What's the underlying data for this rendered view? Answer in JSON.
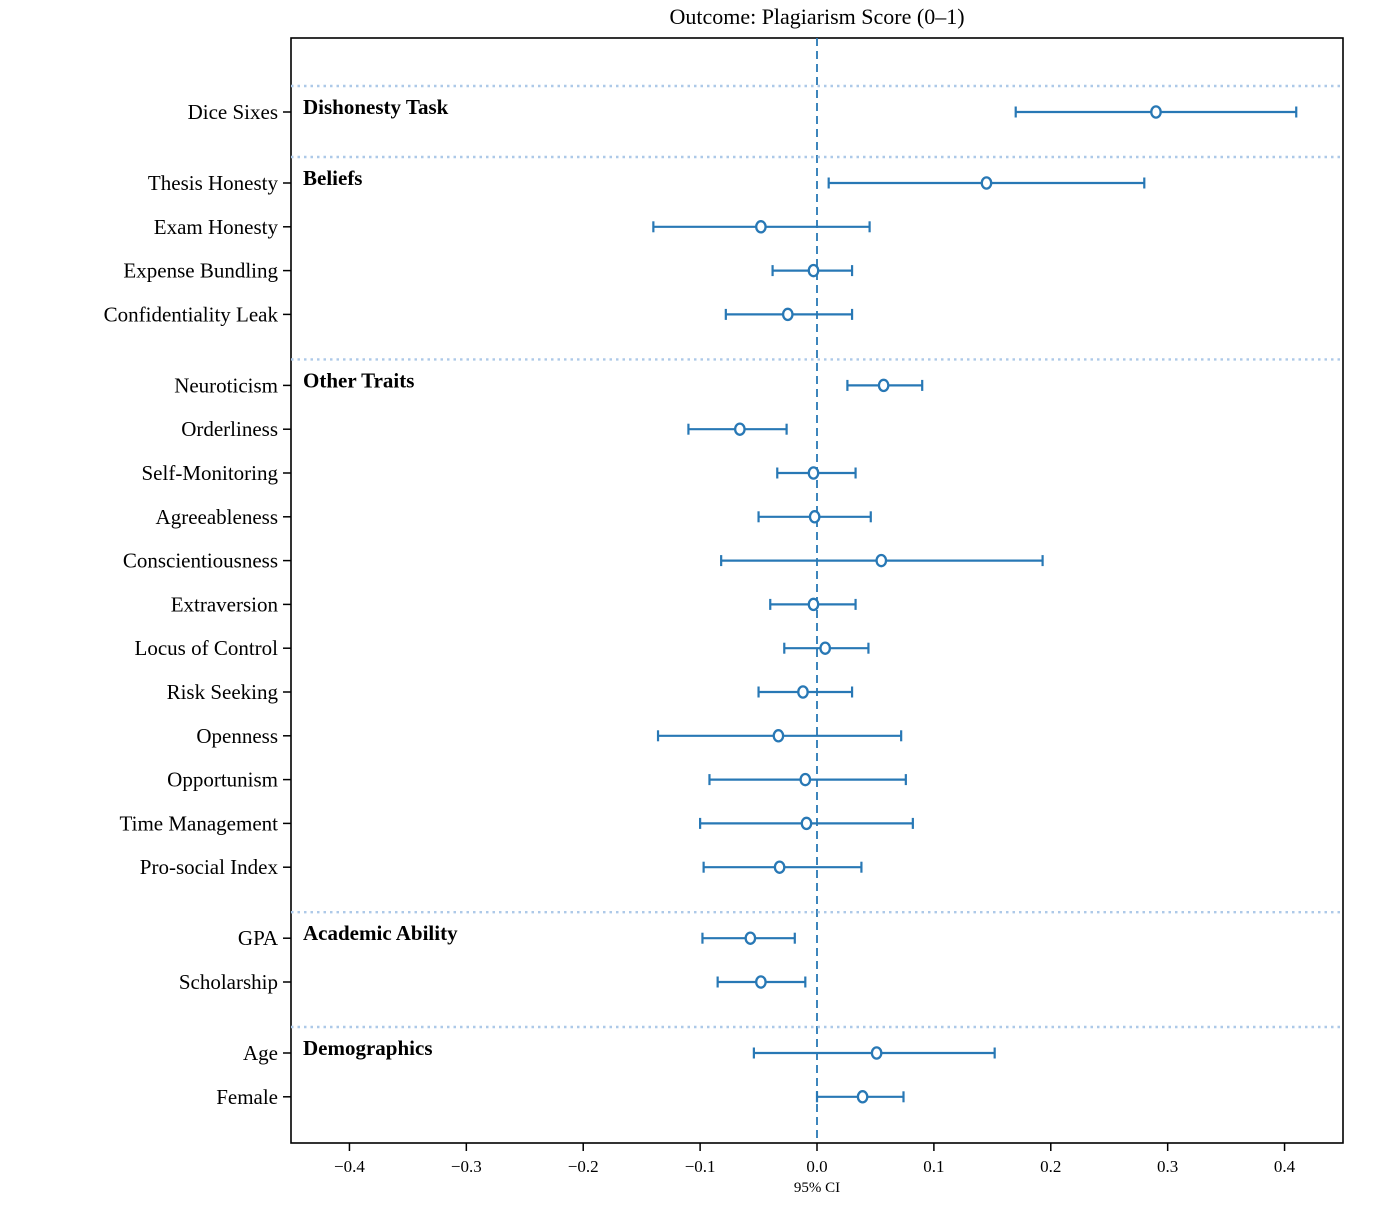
{
  "title": "Outcome: Plagiarism Score (0–1)",
  "xlabel": "95% CI",
  "colors": {
    "estimate_blue": "#2878b5",
    "zero_line_blue": "#2878b5",
    "separator_light_blue": "#adc9e8",
    "frame_black": "#000000",
    "background": "#ffffff"
  },
  "chart_data": {
    "type": "forest",
    "title": "Outcome: Plagiarism Score (0–1)",
    "xlabel": "95% CI",
    "xlim": [
      -0.45,
      0.45
    ],
    "zero_reference": 0.0,
    "x_ticks": [
      -0.4,
      -0.3,
      -0.2,
      -0.1,
      0.0,
      0.1,
      0.2,
      0.3,
      0.4
    ],
    "x_tick_labels": [
      "−0.4",
      "−0.3",
      "−0.2",
      "−0.1",
      "0.0",
      "0.1",
      "0.2",
      "0.3",
      "0.4"
    ],
    "grid": false,
    "marker_style": "open-circle",
    "groups": [
      {
        "label": "Dishonesty Task",
        "rows": [
          {
            "label": "Dice Sixes",
            "estimate": 0.29,
            "ci_low": 0.17,
            "ci_high": 0.41
          }
        ]
      },
      {
        "label": "Beliefs",
        "rows": [
          {
            "label": "Thesis Honesty",
            "estimate": 0.145,
            "ci_low": 0.01,
            "ci_high": 0.28
          },
          {
            "label": "Exam Honesty",
            "estimate": -0.048,
            "ci_low": -0.14,
            "ci_high": 0.045
          },
          {
            "label": "Expense Bundling",
            "estimate": -0.003,
            "ci_low": -0.038,
            "ci_high": 0.03
          },
          {
            "label": "Confidentiality Leak",
            "estimate": -0.025,
            "ci_low": -0.078,
            "ci_high": 0.03
          }
        ]
      },
      {
        "label": "Other Traits",
        "rows": [
          {
            "label": "Neuroticism",
            "estimate": 0.057,
            "ci_low": 0.026,
            "ci_high": 0.09
          },
          {
            "label": "Orderliness",
            "estimate": -0.066,
            "ci_low": -0.11,
            "ci_high": -0.026
          },
          {
            "label": "Self-Monitoring",
            "estimate": -0.003,
            "ci_low": -0.034,
            "ci_high": 0.033
          },
          {
            "label": "Agreeableness",
            "estimate": -0.002,
            "ci_low": -0.05,
            "ci_high": 0.046
          },
          {
            "label": "Conscientiousness",
            "estimate": 0.055,
            "ci_low": -0.082,
            "ci_high": 0.193
          },
          {
            "label": "Extraversion",
            "estimate": -0.003,
            "ci_low": -0.04,
            "ci_high": 0.033
          },
          {
            "label": "Locus of Control",
            "estimate": 0.007,
            "ci_low": -0.028,
            "ci_high": 0.044
          },
          {
            "label": "Risk Seeking",
            "estimate": -0.012,
            "ci_low": -0.05,
            "ci_high": 0.03
          },
          {
            "label": "Openness",
            "estimate": -0.033,
            "ci_low": -0.136,
            "ci_high": 0.072
          },
          {
            "label": "Opportunism",
            "estimate": -0.01,
            "ci_low": -0.092,
            "ci_high": 0.076
          },
          {
            "label": "Time Management",
            "estimate": -0.009,
            "ci_low": -0.1,
            "ci_high": 0.082
          },
          {
            "label": "Pro-social Index",
            "estimate": -0.032,
            "ci_low": -0.097,
            "ci_high": 0.038
          }
        ]
      },
      {
        "label": "Academic Ability",
        "rows": [
          {
            "label": "GPA",
            "estimate": -0.057,
            "ci_low": -0.098,
            "ci_high": -0.019
          },
          {
            "label": "Scholarship",
            "estimate": -0.048,
            "ci_low": -0.085,
            "ci_high": -0.01
          }
        ]
      },
      {
        "label": "Demographics",
        "rows": [
          {
            "label": "Age",
            "estimate": 0.051,
            "ci_low": -0.054,
            "ci_high": 0.152
          },
          {
            "label": "Female",
            "estimate": 0.039,
            "ci_low": 0.0,
            "ci_high": 0.074
          }
        ]
      }
    ]
  }
}
